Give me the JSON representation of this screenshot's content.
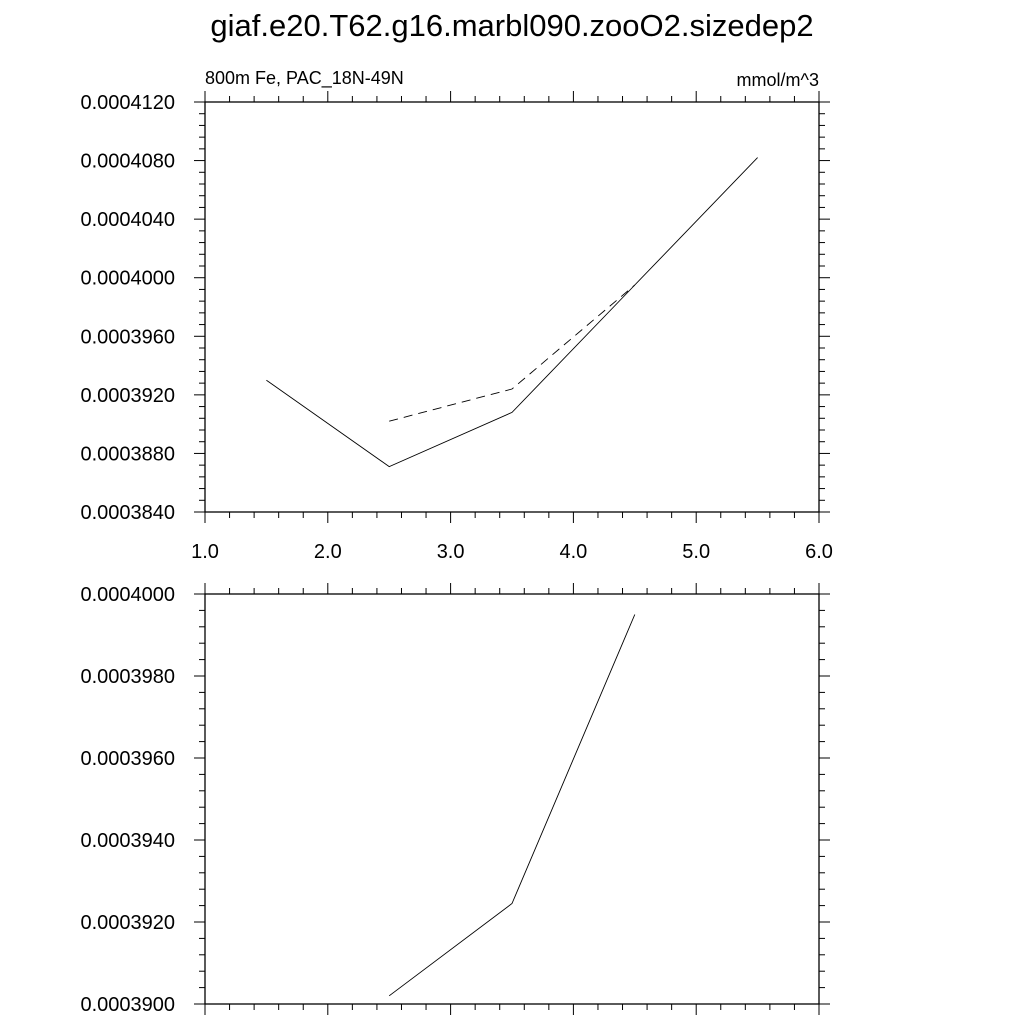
{
  "title": "giaf.e20.T62.g16.marbl090.zooO2.sizedep2",
  "chart_data": [
    {
      "type": "line",
      "left_label": "800m Fe, PAC_18N-49N",
      "right_label": "mmol/m^3",
      "xlim": [
        1.0,
        6.0
      ],
      "ylim": [
        0.000384,
        0.000412
      ],
      "x_ticks": [
        "1.0",
        "2.0",
        "3.0",
        "4.0",
        "5.0",
        "6.0"
      ],
      "y_ticks": [
        "0.0003840",
        "0.0003880",
        "0.0003920",
        "0.0003960",
        "0.0004000",
        "0.0004040",
        "0.0004080",
        "0.0004120"
      ],
      "series": [
        {
          "style": "solid",
          "x": [
            1.5,
            2.5,
            3.5,
            4.5,
            5.5
          ],
          "y": [
            0.000393,
            0.0003871,
            0.0003908,
            0.0003995,
            0.0004082
          ]
        },
        {
          "style": "dashed",
          "x": [
            2.5,
            3.5,
            4.5
          ],
          "y": [
            0.0003902,
            0.0003924,
            0.0003995
          ]
        }
      ]
    },
    {
      "type": "line",
      "xlim": [
        1.0,
        6.0
      ],
      "ylim": [
        0.00039,
        0.0004
      ],
      "y_ticks": [
        "0.0003900",
        "0.0003920",
        "0.0003940",
        "0.0003960",
        "0.0003980",
        "0.0004000"
      ],
      "series": [
        {
          "style": "solid",
          "x": [
            2.5,
            3.5,
            4.5
          ],
          "y": [
            0.0003902,
            0.00039245,
            0.0003995
          ]
        }
      ]
    }
  ]
}
